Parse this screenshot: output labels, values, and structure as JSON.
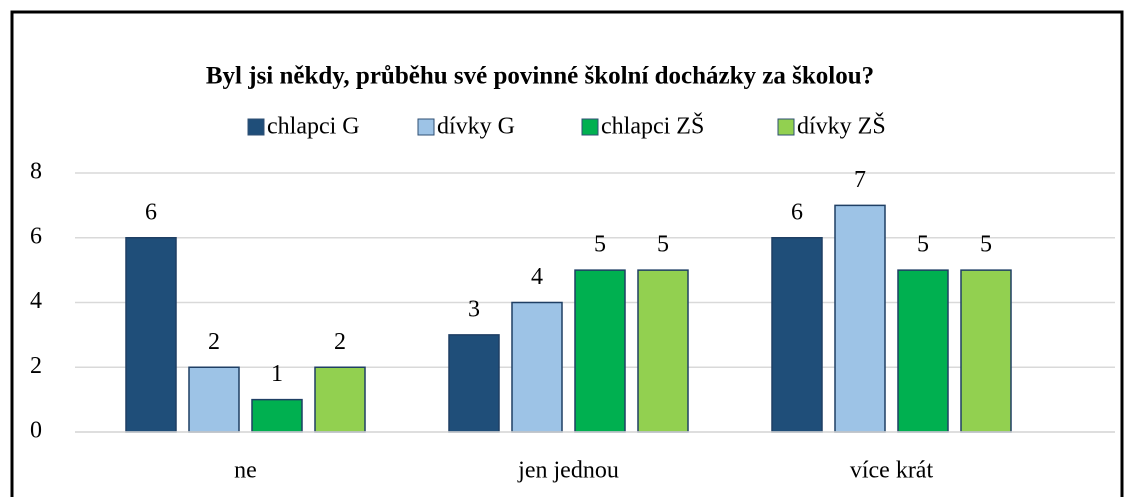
{
  "chart_data": {
    "type": "bar",
    "title": "Byl jsi někdy, průběhu své povinné školní docházky za školou?",
    "categories": [
      "ne",
      "jen jednou",
      "více krát"
    ],
    "series": [
      {
        "name": "chlapci G",
        "color": "#1f4e79",
        "values": [
          6,
          3,
          6
        ]
      },
      {
        "name": "dívky G",
        "color": "#9dc3e6",
        "values": [
          2,
          4,
          7
        ]
      },
      {
        "name": "chlapci ZŠ",
        "color": "#00b050",
        "values": [
          1,
          5,
          5
        ]
      },
      {
        "name": "dívky ZŠ",
        "color": "#92d050",
        "values": [
          2,
          5,
          5
        ]
      }
    ],
    "ylim": [
      0,
      8
    ],
    "yticks": [
      0,
      2,
      4,
      6,
      8
    ],
    "grid": true,
    "legend": "top"
  }
}
